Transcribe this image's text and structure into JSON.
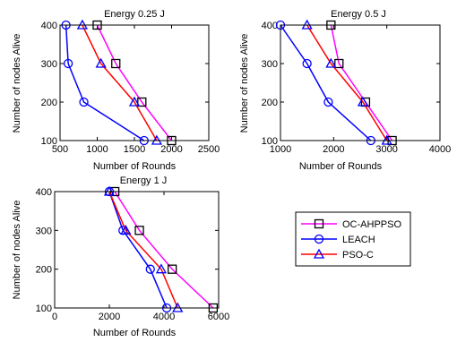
{
  "chart_data": [
    {
      "type": "line",
      "title": "Energy 0.25 J",
      "xlabel": "Number of Rounds",
      "ylabel": "Number of nodes Alive",
      "xlim": [
        500,
        2500
      ],
      "ylim": [
        100,
        400
      ],
      "xticks": [
        "500",
        "1000",
        "1500",
        "2000",
        "2500"
      ],
      "yticks": [
        "100",
        "200",
        "300",
        "400"
      ],
      "series": [
        {
          "name": "OC-AHPPSO",
          "color": "#ff00ff",
          "marker": "square",
          "points": [
            [
              2000,
              100
            ],
            [
              1600,
              200
            ],
            [
              1250,
              300
            ],
            [
              1000,
              400
            ]
          ]
        },
        {
          "name": "LEACH",
          "color": "#0000ff",
          "marker": "circle",
          "points": [
            [
              1630,
              100
            ],
            [
              820,
              200
            ],
            [
              610,
              300
            ],
            [
              580,
              400
            ]
          ]
        },
        {
          "name": "PSO-C",
          "color": "#ff0000",
          "marker": "triangle",
          "points": [
            [
              1800,
              100
            ],
            [
              1500,
              200
            ],
            [
              1050,
              300
            ],
            [
              800,
              400
            ]
          ]
        }
      ]
    },
    {
      "type": "line",
      "title": "Energy 0.5 J",
      "xlabel": "Number of Rounds",
      "ylabel": "Number of nodes Alive",
      "xlim": [
        1000,
        4000
      ],
      "ylim": [
        100,
        400
      ],
      "xticks": [
        "1000",
        "2000",
        "3000",
        "4000"
      ],
      "yticks": [
        "100",
        "200",
        "300",
        "400"
      ],
      "series": [
        {
          "name": "OC-AHPPSO",
          "color": "#ff00ff",
          "marker": "square",
          "points": [
            [
              3100,
              100
            ],
            [
              2600,
              200
            ],
            [
              2100,
              300
            ],
            [
              1950,
              400
            ]
          ]
        },
        {
          "name": "LEACH",
          "color": "#0000ff",
          "marker": "circle",
          "points": [
            [
              2700,
              100
            ],
            [
              1900,
              200
            ],
            [
              1500,
              300
            ],
            [
              1000,
              400
            ]
          ]
        },
        {
          "name": "PSO-C",
          "color": "#ff0000",
          "marker": "triangle",
          "points": [
            [
              3000,
              100
            ],
            [
              2550,
              200
            ],
            [
              1950,
              300
            ],
            [
              1500,
              400
            ]
          ]
        }
      ]
    },
    {
      "type": "line",
      "title": "Energy 1 J",
      "xlabel": "Number of Rounds",
      "ylabel": "Number of nodes Alive",
      "xlim": [
        0,
        6000
      ],
      "ylim": [
        100,
        400
      ],
      "xticks": [
        "0",
        "2000",
        "4000",
        "6000"
      ],
      "yticks": [
        "100",
        "200",
        "300",
        "400"
      ],
      "series": [
        {
          "name": "OC-AHPPSO",
          "color": "#ff00ff",
          "marker": "square",
          "points": [
            [
              5800,
              100
            ],
            [
              4300,
              200
            ],
            [
              3100,
              300
            ],
            [
              2200,
              400
            ]
          ]
        },
        {
          "name": "LEACH",
          "color": "#0000ff",
          "marker": "circle",
          "points": [
            [
              4100,
              100
            ],
            [
              3500,
              200
            ],
            [
              2500,
              300
            ],
            [
              2000,
              400
            ]
          ]
        },
        {
          "name": "PSO-C",
          "color": "#ff0000",
          "marker": "triangle",
          "points": [
            [
              4500,
              100
            ],
            [
              3900,
              200
            ],
            [
              2600,
              300
            ],
            [
              2000,
              400
            ]
          ]
        }
      ]
    }
  ],
  "legend": {
    "entries": [
      {
        "name": "OC-AHPPSO",
        "color": "#ff00ff",
        "marker": "square"
      },
      {
        "name": "LEACH",
        "color": "#0000ff",
        "marker": "circle"
      },
      {
        "name": "PSO-C",
        "color": "#ff0000",
        "marker": "triangle"
      }
    ]
  }
}
